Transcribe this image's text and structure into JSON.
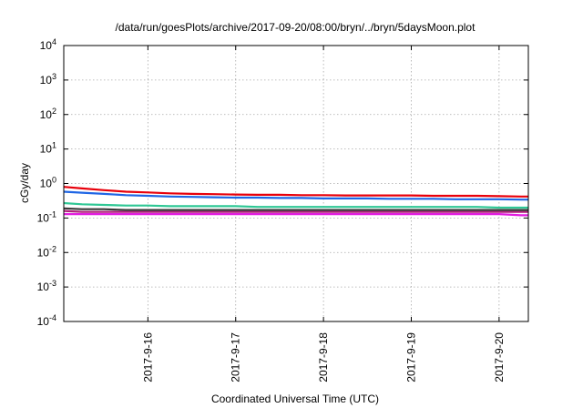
{
  "chart_data": {
    "type": "line",
    "title": "/data/run/goesPlots/archive/2017-09-20/08:00/bryn/../bryn/5daysMoon.plot",
    "xlabel": "Coordinated Universal Time (UTC)",
    "ylabel": "cGy/day",
    "yscale": "log",
    "ylim": [
      0.0001,
      10000
    ],
    "y_ticks": [
      {
        "value": 0.0001,
        "base": "10",
        "exp": "-4"
      },
      {
        "value": 0.001,
        "base": "10",
        "exp": "-3"
      },
      {
        "value": 0.01,
        "base": "10",
        "exp": "-2"
      },
      {
        "value": 0.1,
        "base": "10",
        "exp": "-1"
      },
      {
        "value": 1,
        "base": "10",
        "exp": "0"
      },
      {
        "value": 10,
        "base": "10",
        "exp": "1"
      },
      {
        "value": 100,
        "base": "10",
        "exp": "2"
      },
      {
        "value": 1000,
        "base": "10",
        "exp": "3"
      },
      {
        "value": 10000,
        "base": "10",
        "exp": "4"
      }
    ],
    "xlim": [
      "2017-09-15T01:00",
      "2017-09-20T08:00"
    ],
    "x_ticks": [
      {
        "value": "2017-09-16T00:00",
        "label": "2017-9-16"
      },
      {
        "value": "2017-09-17T00:00",
        "label": "2017-9-17"
      },
      {
        "value": "2017-09-18T00:00",
        "label": "2017-9-18"
      },
      {
        "value": "2017-09-19T00:00",
        "label": "2017-9-19"
      },
      {
        "value": "2017-09-20T00:00",
        "label": "2017-9-20"
      }
    ],
    "grid": true,
    "legend": "none",
    "series": [
      {
        "color": "#e8000b",
        "x": [
          "2017-09-15T01:00",
          "2017-09-15T06:00",
          "2017-09-15T12:00",
          "2017-09-15T18:00",
          "2017-09-16T00:00",
          "2017-09-16T06:00",
          "2017-09-16T12:00",
          "2017-09-16T18:00",
          "2017-09-17T00:00",
          "2017-09-17T06:00",
          "2017-09-17T12:00",
          "2017-09-17T18:00",
          "2017-09-18T00:00",
          "2017-09-18T06:00",
          "2017-09-18T12:00",
          "2017-09-18T18:00",
          "2017-09-19T00:00",
          "2017-09-19T06:00",
          "2017-09-19T12:00",
          "2017-09-19T18:00",
          "2017-09-20T00:00",
          "2017-09-20T06:00",
          "2017-09-20T08:00"
        ],
        "y": [
          0.8,
          0.72,
          0.64,
          0.58,
          0.55,
          0.52,
          0.5,
          0.49,
          0.48,
          0.47,
          0.47,
          0.46,
          0.46,
          0.45,
          0.45,
          0.45,
          0.45,
          0.44,
          0.44,
          0.44,
          0.43,
          0.42,
          0.42
        ]
      },
      {
        "color": "#1f66e5",
        "x": [
          "2017-09-15T01:00",
          "2017-09-15T06:00",
          "2017-09-15T12:00",
          "2017-09-15T18:00",
          "2017-09-16T00:00",
          "2017-09-16T06:00",
          "2017-09-16T12:00",
          "2017-09-16T18:00",
          "2017-09-17T00:00",
          "2017-09-17T06:00",
          "2017-09-17T12:00",
          "2017-09-17T18:00",
          "2017-09-18T00:00",
          "2017-09-18T06:00",
          "2017-09-18T12:00",
          "2017-09-18T18:00",
          "2017-09-19T00:00",
          "2017-09-19T06:00",
          "2017-09-19T12:00",
          "2017-09-19T18:00",
          "2017-09-20T00:00",
          "2017-09-20T06:00",
          "2017-09-20T08:00"
        ],
        "y": [
          0.58,
          0.54,
          0.5,
          0.46,
          0.44,
          0.42,
          0.41,
          0.4,
          0.39,
          0.39,
          0.38,
          0.38,
          0.37,
          0.37,
          0.37,
          0.36,
          0.36,
          0.36,
          0.35,
          0.35,
          0.35,
          0.34,
          0.34
        ]
      },
      {
        "color": "#2fc795",
        "x": [
          "2017-09-15T01:00",
          "2017-09-15T06:00",
          "2017-09-15T12:00",
          "2017-09-15T18:00",
          "2017-09-16T00:00",
          "2017-09-16T06:00",
          "2017-09-16T12:00",
          "2017-09-16T18:00",
          "2017-09-17T00:00",
          "2017-09-17T06:00",
          "2017-09-17T12:00",
          "2017-09-17T18:00",
          "2017-09-18T00:00",
          "2017-09-18T06:00",
          "2017-09-18T12:00",
          "2017-09-18T18:00",
          "2017-09-19T00:00",
          "2017-09-19T06:00",
          "2017-09-19T12:00",
          "2017-09-19T18:00",
          "2017-09-20T00:00",
          "2017-09-20T06:00",
          "2017-09-20T08:00"
        ],
        "y": [
          0.27,
          0.25,
          0.24,
          0.23,
          0.23,
          0.22,
          0.22,
          0.22,
          0.22,
          0.21,
          0.21,
          0.21,
          0.21,
          0.21,
          0.21,
          0.21,
          0.21,
          0.21,
          0.21,
          0.21,
          0.2,
          0.2,
          0.2
        ]
      },
      {
        "color": "#3a3a3a",
        "x": [
          "2017-09-15T01:00",
          "2017-09-15T06:00",
          "2017-09-15T12:00",
          "2017-09-15T18:00",
          "2017-09-16T00:00",
          "2017-09-16T06:00",
          "2017-09-16T12:00",
          "2017-09-16T18:00",
          "2017-09-17T00:00",
          "2017-09-17T06:00",
          "2017-09-17T12:00",
          "2017-09-17T18:00",
          "2017-09-18T00:00",
          "2017-09-18T06:00",
          "2017-09-18T12:00",
          "2017-09-18T18:00",
          "2017-09-19T00:00",
          "2017-09-19T06:00",
          "2017-09-19T12:00",
          "2017-09-19T18:00",
          "2017-09-20T00:00",
          "2017-09-20T06:00",
          "2017-09-20T08:00"
        ],
        "y": [
          0.19,
          0.18,
          0.18,
          0.17,
          0.17,
          0.17,
          0.17,
          0.17,
          0.17,
          0.17,
          0.17,
          0.17,
          0.17,
          0.17,
          0.17,
          0.17,
          0.17,
          0.17,
          0.17,
          0.17,
          0.17,
          0.17,
          0.17
        ]
      },
      {
        "color": "#b01e7a",
        "x": [
          "2017-09-15T01:00",
          "2017-09-15T06:00",
          "2017-09-15T12:00",
          "2017-09-15T18:00",
          "2017-09-16T00:00",
          "2017-09-16T06:00",
          "2017-09-16T12:00",
          "2017-09-16T18:00",
          "2017-09-17T00:00",
          "2017-09-17T06:00",
          "2017-09-17T12:00",
          "2017-09-17T18:00",
          "2017-09-18T00:00",
          "2017-09-18T06:00",
          "2017-09-18T12:00",
          "2017-09-18T18:00",
          "2017-09-19T00:00",
          "2017-09-19T06:00",
          "2017-09-19T12:00",
          "2017-09-19T18:00",
          "2017-09-20T00:00",
          "2017-09-20T06:00",
          "2017-09-20T08:00"
        ],
        "y": [
          0.16,
          0.15,
          0.15,
          0.15,
          0.15,
          0.15,
          0.15,
          0.15,
          0.15,
          0.15,
          0.15,
          0.15,
          0.15,
          0.15,
          0.15,
          0.15,
          0.15,
          0.15,
          0.15,
          0.15,
          0.15,
          0.15,
          0.15
        ]
      },
      {
        "color": "#e21ce0",
        "x": [
          "2017-09-15T01:00",
          "2017-09-15T06:00",
          "2017-09-15T12:00",
          "2017-09-15T18:00",
          "2017-09-16T00:00",
          "2017-09-16T06:00",
          "2017-09-16T12:00",
          "2017-09-16T18:00",
          "2017-09-17T00:00",
          "2017-09-17T06:00",
          "2017-09-17T12:00",
          "2017-09-17T18:00",
          "2017-09-18T00:00",
          "2017-09-18T06:00",
          "2017-09-18T12:00",
          "2017-09-18T18:00",
          "2017-09-19T00:00",
          "2017-09-19T06:00",
          "2017-09-19T12:00",
          "2017-09-19T18:00",
          "2017-09-20T00:00",
          "2017-09-20T06:00",
          "2017-09-20T08:00"
        ],
        "y": [
          0.13,
          0.13,
          0.13,
          0.13,
          0.13,
          0.13,
          0.13,
          0.13,
          0.13,
          0.13,
          0.13,
          0.13,
          0.13,
          0.13,
          0.13,
          0.13,
          0.13,
          0.13,
          0.13,
          0.13,
          0.13,
          0.12,
          0.12
        ]
      }
    ]
  }
}
